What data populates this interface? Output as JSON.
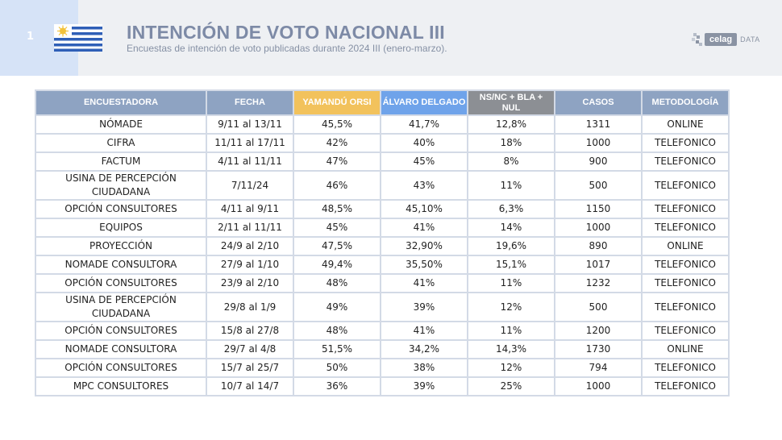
{
  "header": {
    "page_number": "1",
    "title": "INTENCIÓN DE VOTO NACIONAL III",
    "subtitle": "Encuestas de intención de voto publicadas durante 2024 III (enero-marzo).",
    "logo_text": "celag",
    "logo_suffix": "DATA"
  },
  "colors": {
    "orsi": "#f2c25c",
    "delgado": "#6fa3ea",
    "nsnc": "#8c8f94",
    "header": "#8ea3c2"
  },
  "table": {
    "columns": [
      "ENCUESTADORA",
      "FECHA",
      "YAMANDÚ ORSI",
      "ÁLVARO DELGADO",
      "NS/NC + BLA + NUL",
      "CASOS",
      "METODOLOGÍA"
    ],
    "rows": [
      [
        "NÓMADE",
        "9/11 al 13/11",
        "45,5%",
        "41,7%",
        "12,8%",
        "1311",
        "ONLINE"
      ],
      [
        "CIFRA",
        "11/11 al 17/11",
        "42%",
        "40%",
        "18%",
        "1000",
        "TELEFONICO"
      ],
      [
        "FACTUM",
        "4/11 al 11/11",
        "47%",
        "45%",
        "8%",
        "900",
        "TELEFONICO"
      ],
      [
        "USINA DE PERCEPCIÓN CIUDADANA",
        "7/11/24",
        "46%",
        "43%",
        "11%",
        "500",
        "TELEFONICO"
      ],
      [
        "OPCIÓN CONSULTORES",
        "4/11 al 9/11",
        "48,5%",
        "45,10%",
        "6,3%",
        "1150",
        "TELEFONICO"
      ],
      [
        "EQUIPOS",
        "2/11 al 11/11",
        "45%",
        "41%",
        "14%",
        "1000",
        "TELEFONICO"
      ],
      [
        "PROYECCIÓN",
        "24/9 al 2/10",
        "47,5%",
        "32,90%",
        "19,6%",
        "890",
        "ONLINE"
      ],
      [
        "NOMADE CONSULTORA",
        "27/9 al 1/10",
        "49,4%",
        "35,50%",
        "15,1%",
        "1017",
        "TELEFONICO"
      ],
      [
        "OPCIÓN CONSULTORES",
        "23/9 al 2/10",
        "48%",
        "41%",
        "11%",
        "1232",
        "TELEFONICO"
      ],
      [
        "USINA DE PERCEPCIÓN CIUDADANA",
        "29/8 al 1/9",
        "49%",
        "39%",
        "12%",
        "500",
        "TELEFONICO"
      ],
      [
        "OPCIÓN CONSULTORES",
        "15/8 al 27/8",
        "48%",
        "41%",
        "11%",
        "1200",
        "TELEFONICO"
      ],
      [
        "NOMADE CONSULTORA",
        "29/7 al 4/8",
        "51,5%",
        "34,2%",
        "14,3%",
        "1730",
        "ONLINE"
      ],
      [
        "OPCIÓN CONSULTORES",
        "15/7 al 25/7",
        "50%",
        "38%",
        "12%",
        "794",
        "TELEFONICO"
      ],
      [
        "MPC CONSULTORES",
        "10/7 al 14/7",
        "36%",
        "39%",
        "25%",
        "1000",
        "TELEFONICO"
      ]
    ]
  }
}
